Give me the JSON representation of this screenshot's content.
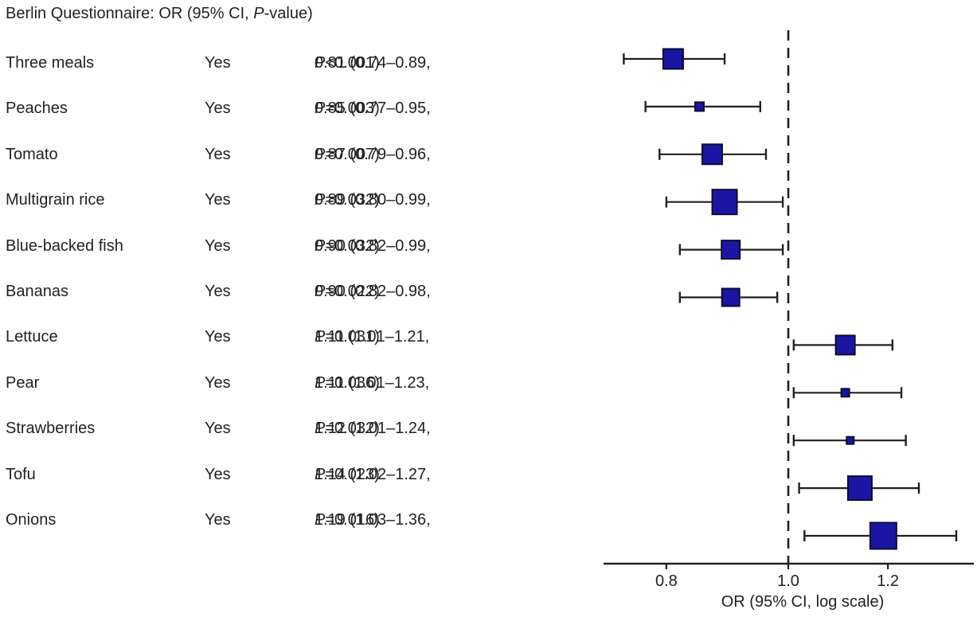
{
  "title": {
    "text_before_p": "Berlin Questionnaire: OR (95% CI, ",
    "p_symbol": "P",
    "text_after_p": "-value)"
  },
  "chart_data": {
    "type": "forest",
    "title": "Berlin Questionnaire: OR (95% CI, P-value)",
    "xlabel": "OR (95% CI, log scale)",
    "x_scale": "log",
    "x_ticks": [
      "0.8",
      "1.0",
      "1.2"
    ],
    "x_range": [
      0.71,
      1.41
    ],
    "reference_line": 1.0,
    "marker_color": "#1a16a3",
    "marker_edge_color": "#0b0b33",
    "line_color": "#231f20",
    "rows": [
      {
        "label": "Three meals",
        "response": "Yes",
        "or": 0.81,
        "ci_low": 0.74,
        "ci_high": 0.89,
        "p_rest": "<0.001",
        "text_before_p": "0.81 (0.74–0.89, ",
        "text_after_p": "<0.001)",
        "marker_px": 25
      },
      {
        "label": "Peaches",
        "response": "Yes",
        "or": 0.85,
        "ci_low": 0.77,
        "ci_high": 0.95,
        "p_rest": "=0.003",
        "text_before_p": "0.85 (0.77–0.95, ",
        "text_after_p": "=0.003)",
        "marker_px": 11
      },
      {
        "label": "Tomato",
        "response": "Yes",
        "or": 0.87,
        "ci_low": 0.79,
        "ci_high": 0.96,
        "p_rest": "=0.007",
        "text_before_p": "0.87 (0.79–0.96, ",
        "text_after_p": "=0.007)",
        "marker_px": 25
      },
      {
        "label": "Multigrain rice",
        "response": "Yes",
        "or": 0.89,
        "ci_low": 0.8,
        "ci_high": 0.99,
        "p_rest": "=0.032",
        "text_before_p": "0.89 (0.80–0.99, ",
        "text_after_p": "=0.032)",
        "marker_px": 31
      },
      {
        "label": "Blue-backed fish",
        "response": "Yes",
        "or": 0.9,
        "ci_low": 0.82,
        "ci_high": 0.99,
        "p_rest": "=0.032",
        "text_before_p": "0.90 (0.82–0.99, ",
        "text_after_p": "=0.032)",
        "marker_px": 23
      },
      {
        "label": "Bananas",
        "response": "Yes",
        "or": 0.9,
        "ci_low": 0.82,
        "ci_high": 0.98,
        "p_rest": "=0.022",
        "text_before_p": "0.90 (0.82–0.98, ",
        "text_after_p": "=0.022)",
        "marker_px": 22
      },
      {
        "label": "Lettuce",
        "response": "Yes",
        "or": 1.11,
        "ci_low": 1.01,
        "ci_high": 1.21,
        "p_rest": "=0.031",
        "text_before_p": "1.11 (1.01–1.21, ",
        "text_after_p": "=0.031)",
        "marker_px": 24
      },
      {
        "label": "Pear",
        "response": "Yes",
        "or": 1.11,
        "ci_low": 1.01,
        "ci_high": 1.23,
        "p_rest": "=0.036",
        "text_before_p": "1.11 (1.01–1.23, ",
        "text_after_p": "=0.036)",
        "marker_px": 10
      },
      {
        "label": "Strawberries",
        "response": "Yes",
        "or": 1.12,
        "ci_low": 1.01,
        "ci_high": 1.24,
        "p_rest": "=0.032",
        "text_before_p": "1.12 (1.01–1.24, ",
        "text_after_p": "=0.032)",
        "marker_px": 9
      },
      {
        "label": "Tofu",
        "response": "Yes",
        "or": 1.14,
        "ci_low": 1.02,
        "ci_high": 1.27,
        "p_rest": "=0.023",
        "text_before_p": "1.14 (1.02–1.27, ",
        "text_after_p": "=0.023)",
        "marker_px": 30
      },
      {
        "label": "Onions",
        "response": "Yes",
        "or": 1.19,
        "ci_low": 1.03,
        "ci_high": 1.36,
        "p_rest": "=0.016",
        "text_before_p": "1.19 (1.03–1.36, ",
        "text_after_p": "=0.016)",
        "marker_px": 33
      }
    ]
  }
}
